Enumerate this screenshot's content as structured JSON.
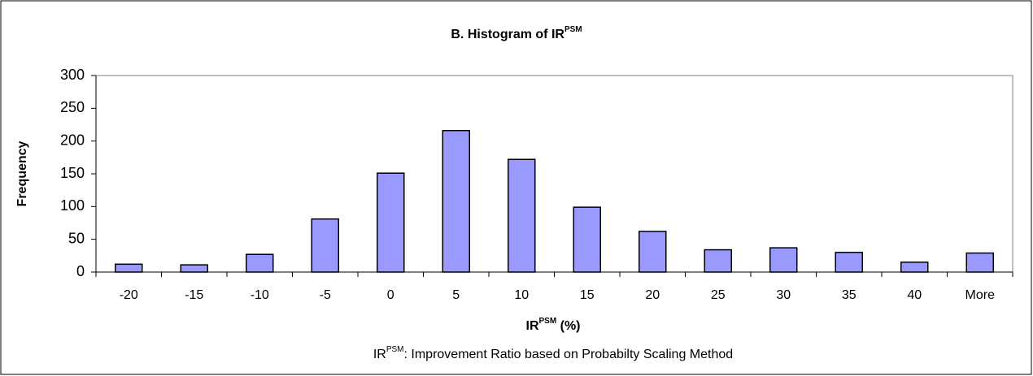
{
  "chart_data": {
    "type": "bar",
    "title": {
      "text": "B. Histogram of IR",
      "sup": "PSM"
    },
    "x_label": {
      "text": "IR",
      "sup": "PSM",
      "after": " (%)"
    },
    "y_label": "Frequency",
    "note": {
      "text": "IR",
      "sup": "PSM",
      "after": ": Improvement Ratio based on Probabilty Scaling Method"
    },
    "categories": [
      "-20",
      "-15",
      "-10",
      "-5",
      "0",
      "5",
      "10",
      "15",
      "20",
      "25",
      "30",
      "35",
      "40",
      "More"
    ],
    "values": [
      12,
      11,
      27,
      81,
      151,
      216,
      172,
      99,
      62,
      34,
      37,
      30,
      15,
      29
    ],
    "color": "#9999ff",
    "ylim": [
      0,
      300
    ],
    "yticks": [
      0,
      50,
      100,
      150,
      200,
      250,
      300
    ],
    "grid": false
  }
}
